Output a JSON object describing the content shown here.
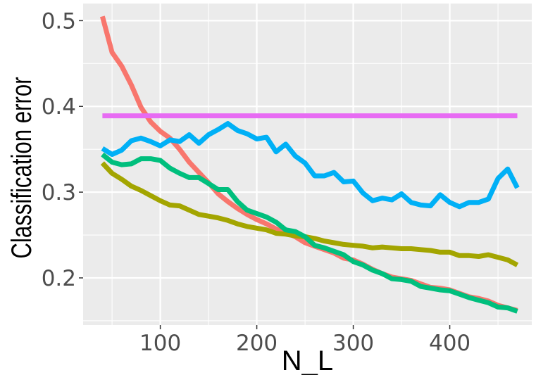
{
  "chart_data": {
    "type": "line",
    "title": "",
    "xlabel": "N_L",
    "ylabel": "Classification error",
    "xlim": [
      20,
      485
    ],
    "ylim": [
      0.145,
      0.52
    ],
    "x_ticks": [
      100,
      200,
      300,
      400
    ],
    "x_tick_labels": [
      "100",
      "200",
      "300",
      "400"
    ],
    "y_ticks": [
      0.2,
      0.3,
      0.4,
      0.5
    ],
    "y_tick_labels": [
      "0.2",
      "0.3",
      "0.4",
      "0.5"
    ],
    "grid": true,
    "legend": "none",
    "colors": {
      "panel": "#ebebeb",
      "grid": "#ffffff",
      "tick_text": "#4d4d4d",
      "tick_mark": "#333333"
    },
    "series": [
      {
        "color": "#f8766d",
        "points": [
          [
            40,
            0.505
          ],
          [
            50,
            0.463
          ],
          [
            60,
            0.447
          ],
          [
            70,
            0.425
          ],
          [
            80,
            0.399
          ],
          [
            90,
            0.382
          ],
          [
            100,
            0.371
          ],
          [
            110,
            0.363
          ],
          [
            120,
            0.35
          ],
          [
            130,
            0.335
          ],
          [
            140,
            0.323
          ],
          [
            150,
            0.311
          ],
          [
            160,
            0.298
          ],
          [
            170,
            0.289
          ],
          [
            180,
            0.281
          ],
          [
            190,
            0.274
          ],
          [
            200,
            0.268
          ],
          [
            210,
            0.263
          ],
          [
            220,
            0.257
          ],
          [
            230,
            0.253
          ],
          [
            240,
            0.248
          ],
          [
            250,
            0.241
          ],
          [
            260,
            0.237
          ],
          [
            270,
            0.233
          ],
          [
            280,
            0.229
          ],
          [
            290,
            0.223
          ],
          [
            300,
            0.221
          ],
          [
            310,
            0.216
          ],
          [
            320,
            0.21
          ],
          [
            330,
            0.205
          ],
          [
            340,
            0.201
          ],
          [
            350,
            0.199
          ],
          [
            360,
            0.197
          ],
          [
            370,
            0.193
          ],
          [
            380,
            0.189
          ],
          [
            390,
            0.188
          ],
          [
            400,
            0.186
          ],
          [
            410,
            0.182
          ],
          [
            420,
            0.178
          ],
          [
            430,
            0.176
          ],
          [
            440,
            0.173
          ],
          [
            450,
            0.168
          ],
          [
            460,
            0.165
          ],
          [
            470,
            0.162
          ]
        ]
      },
      {
        "color": "#e76bf3",
        "points": [
          [
            40,
            0.389
          ],
          [
            470,
            0.389
          ]
        ]
      },
      {
        "color": "#00b0f6",
        "points": [
          [
            40,
            0.351
          ],
          [
            50,
            0.344
          ],
          [
            60,
            0.349
          ],
          [
            70,
            0.36
          ],
          [
            80,
            0.363
          ],
          [
            90,
            0.359
          ],
          [
            100,
            0.354
          ],
          [
            110,
            0.361
          ],
          [
            120,
            0.359
          ],
          [
            130,
            0.367
          ],
          [
            140,
            0.357
          ],
          [
            150,
            0.367
          ],
          [
            160,
            0.373
          ],
          [
            170,
            0.38
          ],
          [
            180,
            0.372
          ],
          [
            190,
            0.368
          ],
          [
            200,
            0.362
          ],
          [
            210,
            0.364
          ],
          [
            220,
            0.347
          ],
          [
            230,
            0.356
          ],
          [
            240,
            0.342
          ],
          [
            250,
            0.334
          ],
          [
            260,
            0.319
          ],
          [
            270,
            0.319
          ],
          [
            280,
            0.323
          ],
          [
            290,
            0.312
          ],
          [
            300,
            0.313
          ],
          [
            310,
            0.299
          ],
          [
            320,
            0.29
          ],
          [
            330,
            0.293
          ],
          [
            340,
            0.291
          ],
          [
            350,
            0.298
          ],
          [
            360,
            0.288
          ],
          [
            370,
            0.285
          ],
          [
            380,
            0.284
          ],
          [
            390,
            0.297
          ],
          [
            400,
            0.288
          ],
          [
            410,
            0.283
          ],
          [
            420,
            0.288
          ],
          [
            430,
            0.288
          ],
          [
            440,
            0.292
          ],
          [
            450,
            0.316
          ],
          [
            460,
            0.327
          ],
          [
            470,
            0.305
          ]
        ]
      },
      {
        "color": "#a3a500",
        "points": [
          [
            40,
            0.334
          ],
          [
            50,
            0.322
          ],
          [
            60,
            0.315
          ],
          [
            70,
            0.307
          ],
          [
            80,
            0.302
          ],
          [
            90,
            0.296
          ],
          [
            100,
            0.29
          ],
          [
            110,
            0.285
          ],
          [
            120,
            0.284
          ],
          [
            130,
            0.279
          ],
          [
            140,
            0.274
          ],
          [
            150,
            0.272
          ],
          [
            160,
            0.27
          ],
          [
            170,
            0.267
          ],
          [
            180,
            0.263
          ],
          [
            190,
            0.26
          ],
          [
            200,
            0.258
          ],
          [
            210,
            0.256
          ],
          [
            220,
            0.252
          ],
          [
            230,
            0.251
          ],
          [
            240,
            0.249
          ],
          [
            250,
            0.248
          ],
          [
            260,
            0.246
          ],
          [
            270,
            0.243
          ],
          [
            280,
            0.241
          ],
          [
            290,
            0.239
          ],
          [
            300,
            0.238
          ],
          [
            310,
            0.237
          ],
          [
            320,
            0.235
          ],
          [
            330,
            0.236
          ],
          [
            340,
            0.235
          ],
          [
            350,
            0.234
          ],
          [
            360,
            0.234
          ],
          [
            370,
            0.233
          ],
          [
            380,
            0.232
          ],
          [
            390,
            0.23
          ],
          [
            400,
            0.23
          ],
          [
            410,
            0.226
          ],
          [
            420,
            0.226
          ],
          [
            430,
            0.225
          ],
          [
            440,
            0.227
          ],
          [
            450,
            0.224
          ],
          [
            460,
            0.221
          ],
          [
            470,
            0.215
          ]
        ]
      },
      {
        "color": "#00bf7d",
        "points": [
          [
            40,
            0.344
          ],
          [
            50,
            0.335
          ],
          [
            60,
            0.332
          ],
          [
            70,
            0.333
          ],
          [
            80,
            0.339
          ],
          [
            90,
            0.339
          ],
          [
            100,
            0.337
          ],
          [
            110,
            0.328
          ],
          [
            120,
            0.322
          ],
          [
            130,
            0.317
          ],
          [
            140,
            0.317
          ],
          [
            150,
            0.31
          ],
          [
            160,
            0.303
          ],
          [
            170,
            0.303
          ],
          [
            180,
            0.289
          ],
          [
            190,
            0.279
          ],
          [
            200,
            0.275
          ],
          [
            210,
            0.271
          ],
          [
            220,
            0.265
          ],
          [
            230,
            0.256
          ],
          [
            240,
            0.254
          ],
          [
            250,
            0.248
          ],
          [
            260,
            0.238
          ],
          [
            270,
            0.235
          ],
          [
            280,
            0.231
          ],
          [
            290,
            0.227
          ],
          [
            300,
            0.219
          ],
          [
            310,
            0.215
          ],
          [
            320,
            0.209
          ],
          [
            330,
            0.205
          ],
          [
            340,
            0.199
          ],
          [
            350,
            0.198
          ],
          [
            360,
            0.196
          ],
          [
            370,
            0.19
          ],
          [
            380,
            0.188
          ],
          [
            390,
            0.186
          ],
          [
            400,
            0.185
          ],
          [
            410,
            0.181
          ],
          [
            420,
            0.177
          ],
          [
            430,
            0.174
          ],
          [
            440,
            0.171
          ],
          [
            450,
            0.166
          ],
          [
            460,
            0.165
          ],
          [
            470,
            0.161
          ]
        ]
      }
    ]
  }
}
